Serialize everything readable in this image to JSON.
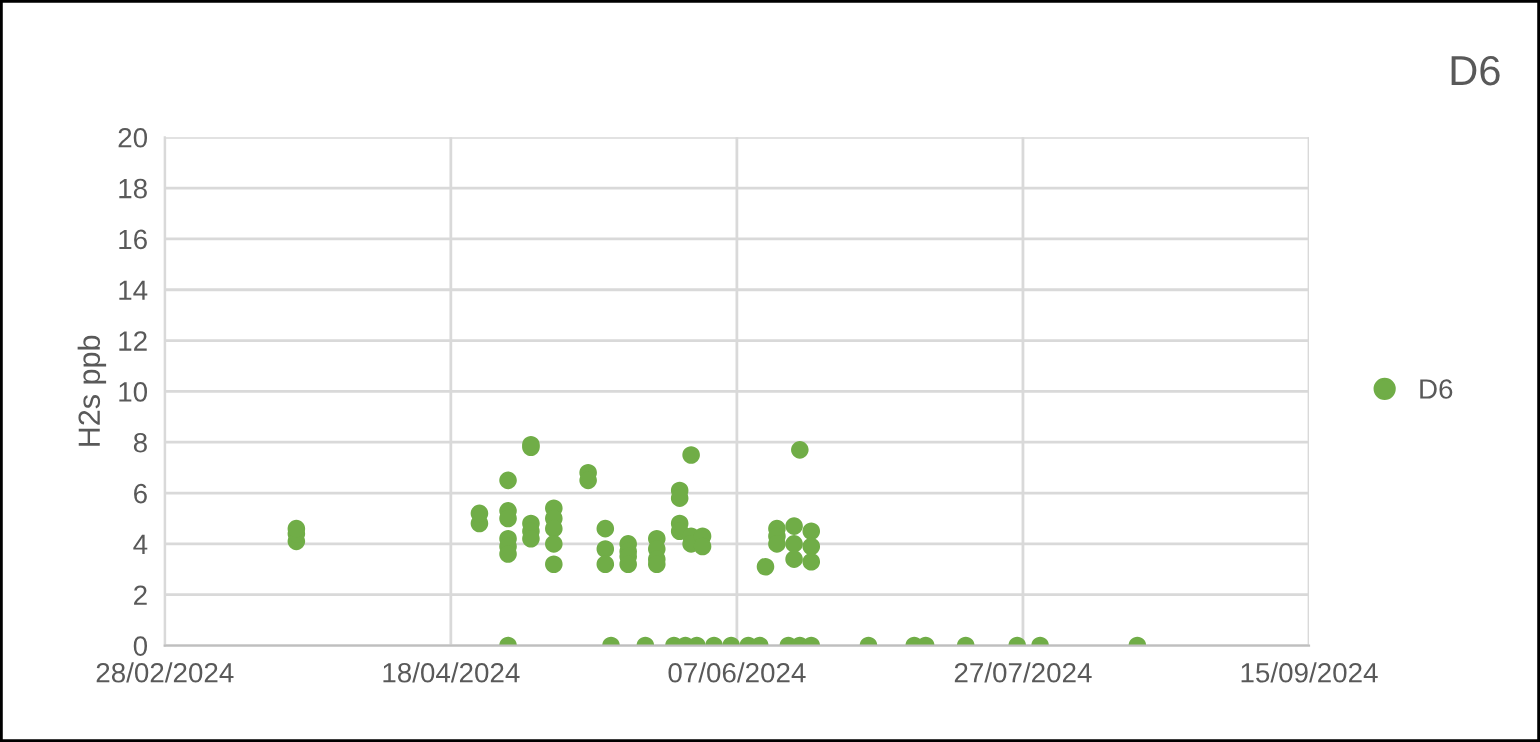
{
  "chart_data": {
    "type": "scatter",
    "title": "D6",
    "ylabel": "H2s ppb",
    "x": [
      "2024-03-22",
      "2024-03-22",
      "2024-03-22",
      "2024-04-23",
      "2024-04-23",
      "2024-04-28",
      "2024-04-28",
      "2024-04-28",
      "2024-04-28",
      "2024-04-28",
      "2024-04-28",
      "2024-04-28",
      "2024-05-02",
      "2024-05-02",
      "2024-05-02",
      "2024-05-02",
      "2024-05-02",
      "2024-05-06",
      "2024-05-06",
      "2024-05-06",
      "2024-05-06",
      "2024-05-06",
      "2024-05-12",
      "2024-05-12",
      "2024-05-15",
      "2024-05-15",
      "2024-05-15",
      "2024-05-16",
      "2024-05-19",
      "2024-05-19",
      "2024-05-19",
      "2024-05-19",
      "2024-05-22",
      "2024-05-24",
      "2024-05-24",
      "2024-05-24",
      "2024-05-24",
      "2024-05-27",
      "2024-05-28",
      "2024-05-28",
      "2024-05-28",
      "2024-05-28",
      "2024-05-29",
      "2024-05-30",
      "2024-05-30",
      "2024-05-30",
      "2024-05-31",
      "2024-06-01",
      "2024-06-01",
      "2024-06-03",
      "2024-06-06",
      "2024-06-09",
      "2024-06-11",
      "2024-06-12",
      "2024-06-14",
      "2024-06-14",
      "2024-06-14",
      "2024-06-16",
      "2024-06-17",
      "2024-06-17",
      "2024-06-17",
      "2024-06-18",
      "2024-06-18",
      "2024-06-20",
      "2024-06-20",
      "2024-06-20",
      "2024-06-20",
      "2024-06-30",
      "2024-07-08",
      "2024-07-10",
      "2024-07-17",
      "2024-07-26",
      "2024-07-30",
      "2024-08-16"
    ],
    "series": [
      {
        "name": "D6",
        "color": "#70ad47",
        "values": [
          4.1,
          4.4,
          4.6,
          4.8,
          5.2,
          6.5,
          5.3,
          5.0,
          4.2,
          3.9,
          3.6,
          0,
          7.8,
          7.9,
          4.8,
          4.5,
          4.2,
          5.4,
          5.0,
          4.6,
          4.0,
          3.2,
          6.8,
          6.5,
          4.6,
          3.8,
          3.2,
          0,
          4.0,
          3.7,
          3.5,
          3.2,
          0,
          4.2,
          3.8,
          3.4,
          3.2,
          0,
          6.1,
          5.8,
          4.8,
          4.5,
          0,
          7.5,
          4.3,
          4.0,
          0,
          4.3,
          3.9,
          0,
          0,
          0,
          0,
          3.1,
          4.6,
          4.3,
          4.0,
          0,
          4.7,
          4.0,
          3.4,
          7.7,
          0,
          4.5,
          3.9,
          3.3,
          0,
          0,
          0,
          0,
          0,
          0,
          0,
          0
        ]
      }
    ],
    "xlim": [
      "2024-02-28",
      "2024-09-15"
    ],
    "xticks": [
      {
        "value": "2024-02-28",
        "label": "28/02/2024"
      },
      {
        "value": "2024-04-18",
        "label": "18/04/2024"
      },
      {
        "value": "2024-06-07",
        "label": "07/06/2024"
      },
      {
        "value": "2024-07-27",
        "label": "27/07/2024"
      },
      {
        "value": "2024-09-15",
        "label": "15/09/2024"
      }
    ],
    "ylim": [
      0,
      20
    ],
    "yticks": [
      0,
      2,
      4,
      6,
      8,
      10,
      12,
      14,
      16,
      18,
      20
    ],
    "grid": true,
    "legend": "right",
    "marker": "circle"
  }
}
